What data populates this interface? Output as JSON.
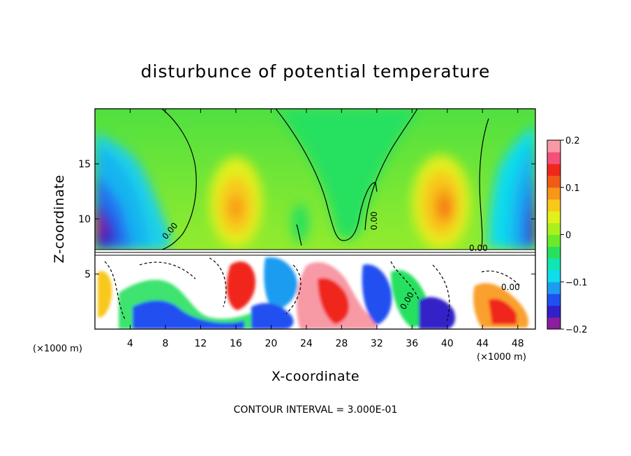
{
  "chart_data": {
    "type": "heatmap",
    "title": "disturbunce of potential temperature",
    "xlabel": "X-coordinate",
    "ylabel": "Z-coordinate",
    "x_unit_left": "(×1000 m)",
    "x_unit_right": "(×1000 m)",
    "xlim": [
      0,
      50
    ],
    "ylim": [
      0,
      20
    ],
    "x_ticks": [
      4,
      8,
      12,
      16,
      20,
      24,
      28,
      32,
      36,
      40,
      44,
      48
    ],
    "y_ticks": [
      5,
      10,
      15
    ],
    "colorbar": {
      "range": [
        -0.2,
        0.2
      ],
      "tick_values": [
        0.2,
        0.1,
        0,
        -0.1,
        -0.2
      ],
      "tick_labels": [
        "0.2",
        "0.1",
        "0",
        "−0.1",
        "−0.2"
      ],
      "colors": [
        "#8a1e9c",
        "#3020c8",
        "#2050f0",
        "#1e9cf0",
        "#10dcec",
        "#10e6b4",
        "#28e060",
        "#6aea2a",
        "#aaf01e",
        "#e2f01c",
        "#f8c81a",
        "#f89618",
        "#f05c18",
        "#f0281c",
        "#f4507a",
        "#f89aa6"
      ]
    },
    "contour_labels": [
      "0.00",
      "0.00",
      "0.00",
      "0.00",
      "0.00"
    ],
    "contour_interval_text": "CONTOUR INTERVAL = 3.000E-01"
  }
}
